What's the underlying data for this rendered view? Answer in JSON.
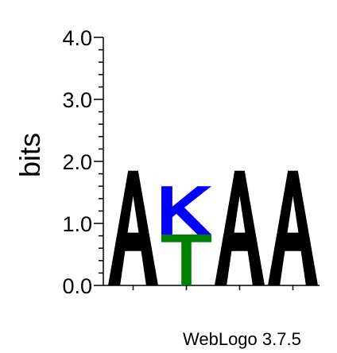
{
  "chart_data": {
    "type": "sequence-logo",
    "ylabel": "bits",
    "ylim": [
      0,
      4.0
    ],
    "yticks": [
      "0.0",
      "1.0",
      "2.0",
      "3.0",
      "4.0"
    ],
    "positions": [
      {
        "stack": [
          {
            "letter": "A",
            "bits": 1.85,
            "color": "#000000"
          }
        ]
      },
      {
        "stack": [
          {
            "letter": "T",
            "bits": 0.82,
            "color": "#008000"
          },
          {
            "letter": "K",
            "bits": 0.78,
            "color": "#0000ff"
          }
        ]
      },
      {
        "stack": [
          {
            "letter": "A",
            "bits": 1.85,
            "color": "#000000"
          }
        ]
      },
      {
        "stack": [
          {
            "letter": "A",
            "bits": 1.85,
            "color": "#000000"
          }
        ]
      }
    ]
  },
  "footer": {
    "credit": "WebLogo 3.7.5"
  }
}
